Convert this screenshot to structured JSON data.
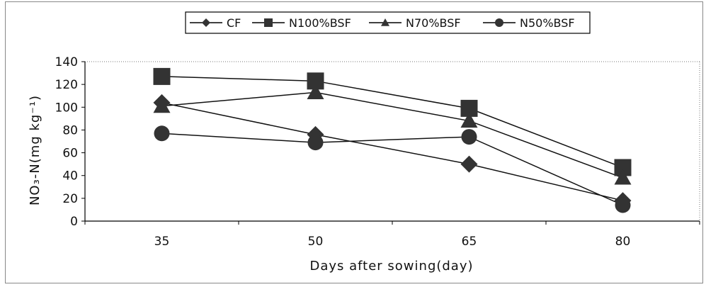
{
  "chart_data": {
    "type": "line",
    "categories": [
      "35",
      "50",
      "65",
      "80"
    ],
    "xlabel": "Days  after sowing(day)",
    "ylabel": "NO₃-N(mg kg⁻¹)",
    "ylim": [
      0,
      140
    ],
    "yticks": [
      "0",
      "20",
      "40",
      "60",
      "80",
      "100",
      "120",
      "140"
    ],
    "grid": "horizontal dotted top border only",
    "legend_position": "top-center",
    "series": [
      {
        "name": "CF",
        "marker": "diamond",
        "values": [
          104,
          76,
          50,
          18
        ]
      },
      {
        "name": "N100%BSF",
        "marker": "square",
        "values": [
          127,
          123,
          99,
          47
        ]
      },
      {
        "name": "N70%BSF",
        "marker": "triangle",
        "values": [
          101,
          113,
          88,
          38
        ]
      },
      {
        "name": "N50%BSF",
        "marker": "circle",
        "values": [
          77,
          69,
          74,
          14
        ]
      }
    ],
    "colors": {
      "marker": "#333333",
      "line": "#111111"
    }
  }
}
